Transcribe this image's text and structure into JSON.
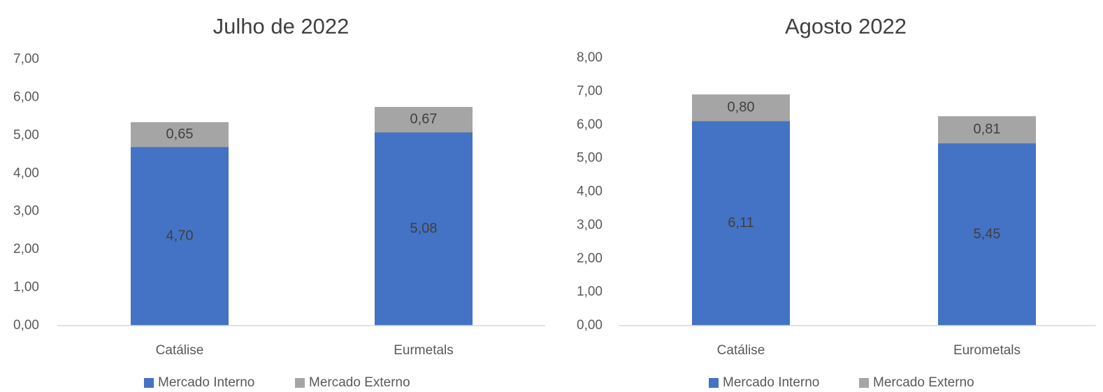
{
  "chart_data": [
    {
      "type": "bar",
      "stacked": true,
      "title": "Julho de 2022",
      "categories": [
        "Catálise",
        "Eurmetals"
      ],
      "series": [
        {
          "name": "Mercado Interno",
          "values": [
            4.7,
            5.08
          ],
          "labels": [
            "4,70",
            "5,08"
          ],
          "color": "#4472C4"
        },
        {
          "name": "Mercado Externo",
          "values": [
            0.65,
            0.67
          ],
          "labels": [
            "0,65",
            "0,67"
          ],
          "color": "#A5A5A5"
        }
      ],
      "ylim": [
        0,
        7
      ],
      "yticks": [
        "0,00",
        "1,00",
        "2,00",
        "3,00",
        "4,00",
        "5,00",
        "6,00",
        "7,00"
      ],
      "legend": "bottom"
    },
    {
      "type": "bar",
      "stacked": true,
      "title": "Agosto 2022",
      "categories": [
        "Catálise",
        "Eurometals"
      ],
      "series": [
        {
          "name": "Mercado Interno",
          "values": [
            6.11,
            5.45
          ],
          "labels": [
            "6,11",
            "5,45"
          ],
          "color": "#4472C4"
        },
        {
          "name": "Mercado Externo",
          "values": [
            0.8,
            0.81
          ],
          "labels": [
            "0,80",
            "0,81"
          ],
          "color": "#A5A5A5"
        }
      ],
      "ylim": [
        0,
        8
      ],
      "yticks": [
        "0,00",
        "1,00",
        "2,00",
        "3,00",
        "4,00",
        "5,00",
        "6,00",
        "7,00",
        "8,00"
      ],
      "legend": "bottom"
    }
  ]
}
